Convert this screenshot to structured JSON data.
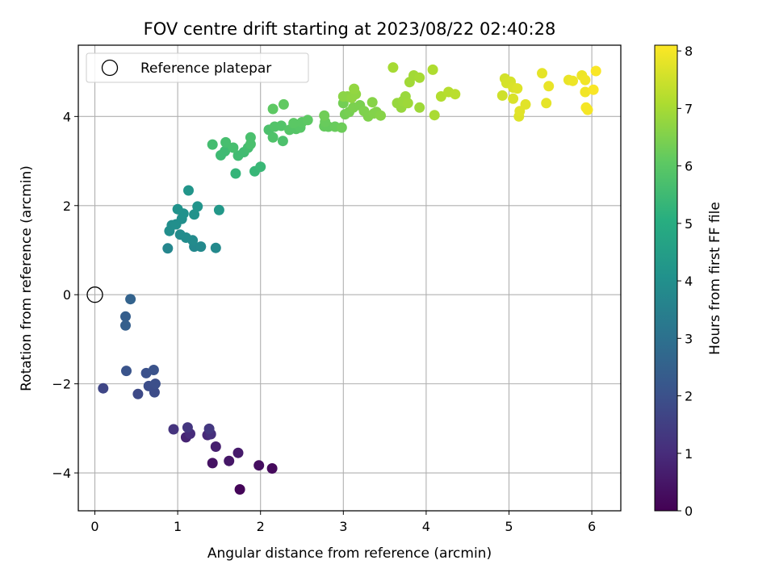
{
  "chart_data": {
    "type": "scatter",
    "title": "FOV centre drift starting at 2023/08/22 02:40:28",
    "xlabel": "Angular distance from reference (arcmin)",
    "ylabel": "Rotation from reference (arcmin)",
    "xlim": [
      -0.2,
      6.35
    ],
    "ylim": [
      -4.85,
      5.6
    ],
    "xticks": [
      0,
      1,
      2,
      3,
      4,
      5,
      6
    ],
    "yticks": [
      -4,
      -2,
      0,
      2,
      4
    ],
    "grid": true,
    "colormap": "viridis",
    "colorbar": {
      "label": "Hours from first FF file",
      "range": [
        0,
        8.1
      ],
      "ticks": [
        0,
        1,
        2,
        3,
        4,
        5,
        6,
        7,
        8
      ]
    },
    "legend": {
      "position": "top-left",
      "entries": [
        {
          "label": "Reference platepar",
          "marker": "open-circle",
          "x": 0,
          "y": 0
        }
      ]
    },
    "series": [
      {
        "points": [
          [
            1.75,
            -4.37,
            0.1
          ],
          [
            2.14,
            -3.9,
            0.2
          ],
          [
            1.98,
            -3.83,
            0.3
          ],
          [
            1.42,
            -3.78,
            0.4
          ],
          [
            1.62,
            -3.73,
            0.5
          ],
          [
            1.73,
            -3.55,
            0.6
          ],
          [
            1.46,
            -3.41,
            0.7
          ],
          [
            1.1,
            -3.2,
            0.8
          ],
          [
            1.36,
            -3.15,
            0.9
          ],
          [
            1.15,
            -3.12,
            1.0
          ],
          [
            1.4,
            -3.13,
            1.1
          ],
          [
            0.95,
            -3.02,
            1.2
          ],
          [
            1.12,
            -2.98,
            1.25
          ],
          [
            1.38,
            -3.01,
            1.3
          ],
          [
            0.1,
            -2.1,
            1.7
          ],
          [
            0.52,
            -2.23,
            1.8
          ],
          [
            0.72,
            -2.19,
            1.85
          ],
          [
            0.65,
            -2.05,
            1.9
          ],
          [
            0.73,
            -2.0,
            1.95
          ],
          [
            0.62,
            -1.76,
            2.0
          ],
          [
            0.71,
            -1.69,
            2.05
          ],
          [
            0.38,
            -1.71,
            2.1
          ],
          [
            0.37,
            -0.49,
            2.4
          ],
          [
            0.37,
            -0.69,
            2.45
          ],
          [
            0.43,
            -0.1,
            2.55
          ],
          [
            0.88,
            1.04,
            3.7
          ],
          [
            1.2,
            1.08,
            3.75
          ],
          [
            1.28,
            1.08,
            3.8
          ],
          [
            1.46,
            1.05,
            3.8
          ],
          [
            1.18,
            1.22,
            3.85
          ],
          [
            1.1,
            1.28,
            3.9
          ],
          [
            1.03,
            1.35,
            3.9
          ],
          [
            0.9,
            1.43,
            3.95
          ],
          [
            0.93,
            1.56,
            3.95
          ],
          [
            0.98,
            1.58,
            4.0
          ],
          [
            1.05,
            1.7,
            4.0
          ],
          [
            1.07,
            1.82,
            4.05
          ],
          [
            1.2,
            1.8,
            4.1
          ],
          [
            1.0,
            1.92,
            4.1
          ],
          [
            1.24,
            1.98,
            4.15
          ],
          [
            1.13,
            2.34,
            4.2
          ],
          [
            1.5,
            1.9,
            4.3
          ],
          [
            1.7,
            2.72,
            5.3
          ],
          [
            1.93,
            2.77,
            5.35
          ],
          [
            2.0,
            2.87,
            5.4
          ],
          [
            1.52,
            3.13,
            5.5
          ],
          [
            1.57,
            3.22,
            5.5
          ],
          [
            1.73,
            3.12,
            5.55
          ],
          [
            1.8,
            3.2,
            5.55
          ],
          [
            1.85,
            3.3,
            5.6
          ],
          [
            1.42,
            3.37,
            5.6
          ],
          [
            1.58,
            3.42,
            5.65
          ],
          [
            1.67,
            3.3,
            5.65
          ],
          [
            1.88,
            3.38,
            5.7
          ],
          [
            1.88,
            3.53,
            5.7
          ],
          [
            2.27,
            3.45,
            5.75
          ],
          [
            2.1,
            3.7,
            5.75
          ],
          [
            2.15,
            3.53,
            5.8
          ],
          [
            2.17,
            3.77,
            5.85
          ],
          [
            2.25,
            3.79,
            5.85
          ],
          [
            2.35,
            3.7,
            5.9
          ],
          [
            2.43,
            3.72,
            5.9
          ],
          [
            2.48,
            3.75,
            5.95
          ],
          [
            2.5,
            3.87,
            6.0
          ],
          [
            2.4,
            3.85,
            6.0
          ],
          [
            2.57,
            3.92,
            6.05
          ],
          [
            2.15,
            4.17,
            6.05
          ],
          [
            2.28,
            4.27,
            6.1
          ],
          [
            2.77,
            3.78,
            6.15
          ],
          [
            2.82,
            3.77,
            6.15
          ],
          [
            2.9,
            3.77,
            6.2
          ],
          [
            2.78,
            3.88,
            6.2
          ],
          [
            2.98,
            3.75,
            6.25
          ],
          [
            2.77,
            4.02,
            6.3
          ],
          [
            3.0,
            4.3,
            6.35
          ],
          [
            3.02,
            4.05,
            6.35
          ],
          [
            3.07,
            4.1,
            6.4
          ],
          [
            3.12,
            4.2,
            6.45
          ],
          [
            3.2,
            4.25,
            6.45
          ],
          [
            3.25,
            4.12,
            6.5
          ],
          [
            3.3,
            4.0,
            6.5
          ],
          [
            3.37,
            4.07,
            6.55
          ],
          [
            3.4,
            4.1,
            6.55
          ],
          [
            3.45,
            4.02,
            6.6
          ],
          [
            3.35,
            4.32,
            6.6
          ],
          [
            3.0,
            4.45,
            6.65
          ],
          [
            3.05,
            4.45,
            6.65
          ],
          [
            3.1,
            4.42,
            6.7
          ],
          [
            3.15,
            4.5,
            6.7
          ],
          [
            3.13,
            4.62,
            6.75
          ],
          [
            3.65,
            4.3,
            6.8
          ],
          [
            3.7,
            4.2,
            6.8
          ],
          [
            3.72,
            4.35,
            6.85
          ],
          [
            3.75,
            4.45,
            6.85
          ],
          [
            3.78,
            4.3,
            6.9
          ],
          [
            3.92,
            4.2,
            6.9
          ],
          [
            3.8,
            4.77,
            6.95
          ],
          [
            3.85,
            4.92,
            6.95
          ],
          [
            3.92,
            4.87,
            7.0
          ],
          [
            3.6,
            5.1,
            7.0
          ],
          [
            4.1,
            4.03,
            7.05
          ],
          [
            4.08,
            5.05,
            7.1
          ],
          [
            4.18,
            4.45,
            7.15
          ],
          [
            4.27,
            4.55,
            7.2
          ],
          [
            4.35,
            4.5,
            7.25
          ],
          [
            4.92,
            4.47,
            7.5
          ],
          [
            4.95,
            4.85,
            7.55
          ],
          [
            4.97,
            4.75,
            7.6
          ],
          [
            5.02,
            4.78,
            7.6
          ],
          [
            5.05,
            4.4,
            7.65
          ],
          [
            5.05,
            4.65,
            7.65
          ],
          [
            5.1,
            4.63,
            7.7
          ],
          [
            5.12,
            4.0,
            7.7
          ],
          [
            5.13,
            4.12,
            7.75
          ],
          [
            5.2,
            4.27,
            7.75
          ],
          [
            5.4,
            4.97,
            7.8
          ],
          [
            5.45,
            4.3,
            7.8
          ],
          [
            5.48,
            4.68,
            7.85
          ],
          [
            5.72,
            4.82,
            7.85
          ],
          [
            5.77,
            4.8,
            7.9
          ],
          [
            5.88,
            4.92,
            7.9
          ],
          [
            5.92,
            4.82,
            7.95
          ],
          [
            5.92,
            4.55,
            7.95
          ],
          [
            5.93,
            4.2,
            8.0
          ],
          [
            5.95,
            4.15,
            8.0
          ],
          [
            6.02,
            4.6,
            8.05
          ],
          [
            6.05,
            5.02,
            8.05
          ]
        ]
      }
    ]
  }
}
